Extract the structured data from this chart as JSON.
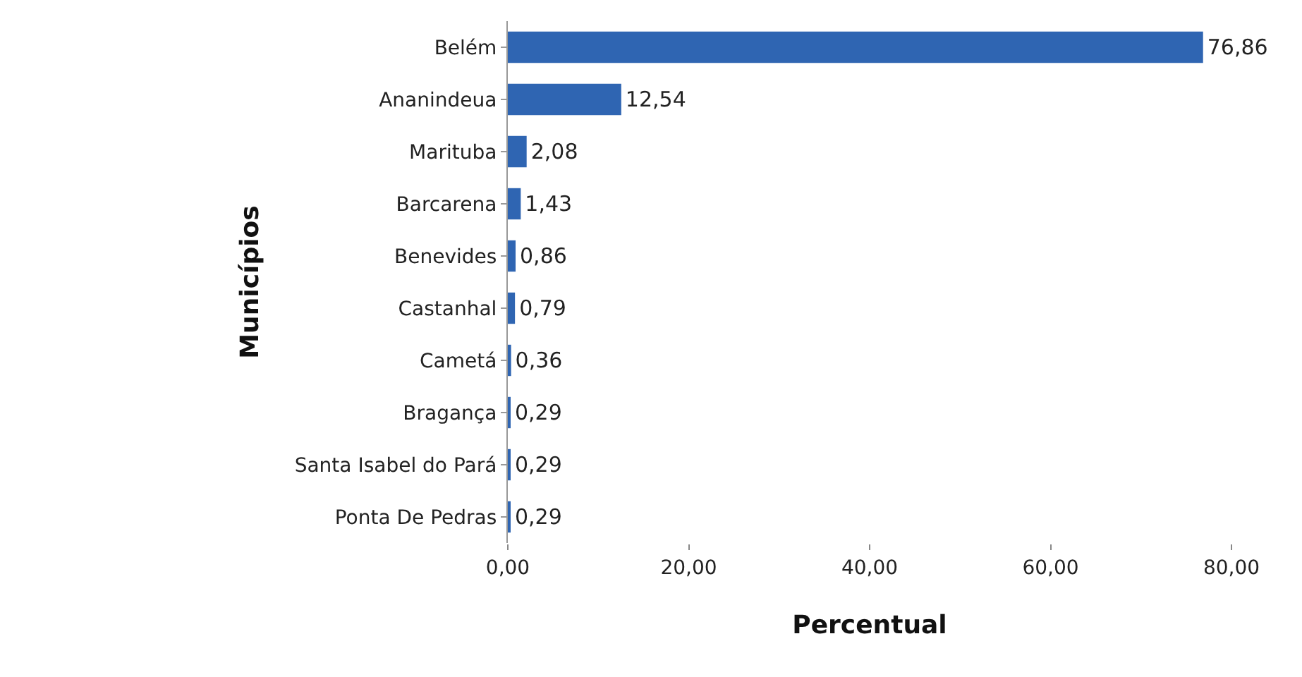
{
  "chart_data": {
    "type": "bar",
    "orientation": "horizontal",
    "xlabel": "Percentual",
    "ylabel": "Municípios",
    "categories": [
      "Belém",
      "Ananindeua",
      "Marituba",
      "Barcarena",
      "Benevides",
      "Castanhal",
      "Cametá",
      "Bragança",
      "Santa Isabel do Pará",
      "Ponta De Pedras"
    ],
    "values": [
      76.86,
      12.54,
      2.08,
      1.43,
      0.86,
      0.79,
      0.36,
      0.29,
      0.29,
      0.29
    ],
    "value_labels": [
      "76,86",
      "12,54",
      "2,08",
      "1,43",
      "0,86",
      "0,79",
      "0,36",
      "0,29",
      "0,29",
      "0,29"
    ],
    "color": "#2f65b2",
    "xlim": [
      0,
      80
    ],
    "xticks": [
      {
        "value": 0,
        "label": "0,00"
      },
      {
        "value": 20,
        "label": "20,00"
      },
      {
        "value": 40,
        "label": "40,00"
      },
      {
        "value": 60,
        "label": "60,00"
      },
      {
        "value": 80,
        "label": "80,00"
      }
    ],
    "grid": false,
    "legend": false
  }
}
